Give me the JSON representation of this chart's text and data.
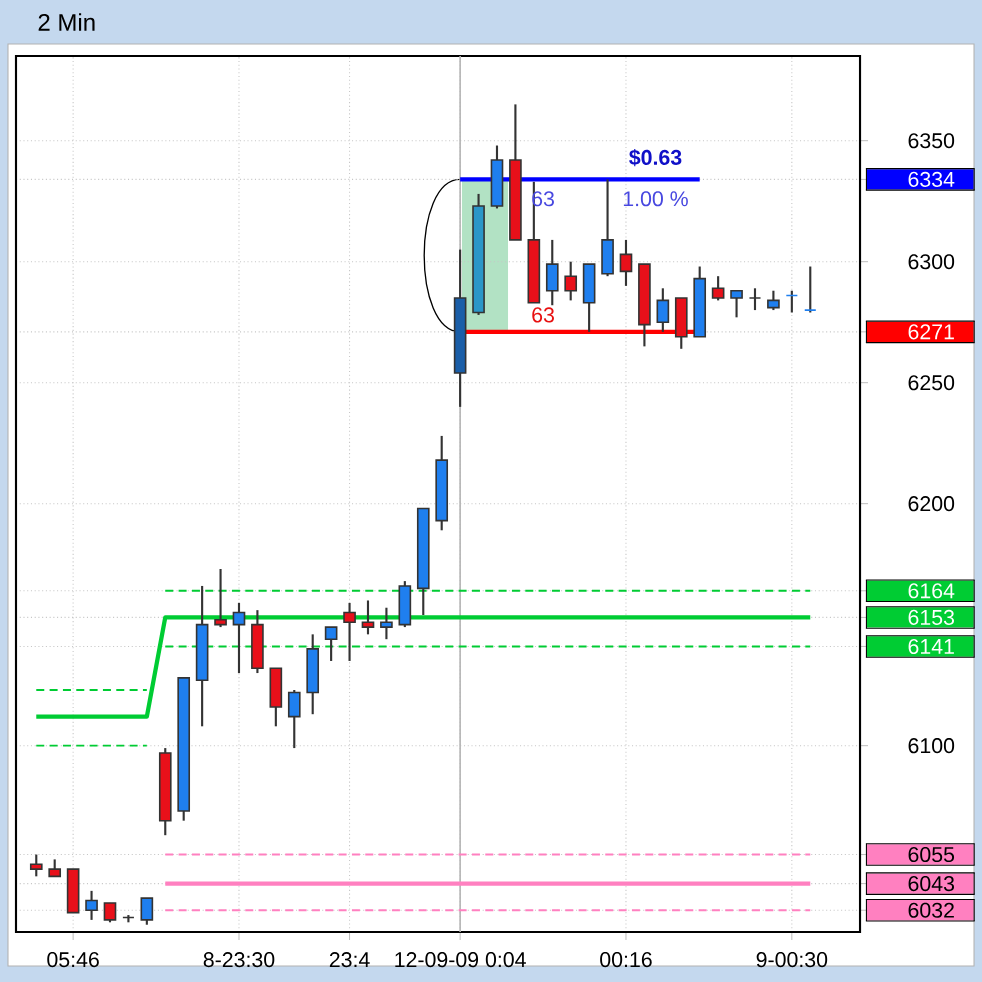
{
  "chart_data": {
    "type": "candlestick",
    "title": "2 Min",
    "categories": [
      null,
      null,
      "05:46",
      null,
      null,
      null,
      null,
      null,
      null,
      null,
      null,
      "8-23:30",
      null,
      null,
      null,
      null,
      null,
      "23:4",
      null,
      null,
      null,
      null,
      null,
      "12-09-09 0:04",
      null,
      null,
      null,
      null,
      null,
      null,
      null,
      null,
      "00:16",
      null,
      null,
      null,
      null,
      null,
      null,
      null,
      null,
      "9-00:30",
      null
    ],
    "ohlc": [
      [
        6051,
        6055,
        6046,
        6049
      ],
      [
        6049,
        6053,
        6046,
        6046
      ],
      [
        6049,
        6049,
        6031,
        6031
      ],
      [
        6032,
        6040,
        6028,
        6036
      ],
      [
        6035,
        6035,
        6027,
        6028
      ],
      [
        6029,
        6030,
        6027,
        6029
      ],
      [
        6028,
        6037,
        6026,
        6037
      ],
      [
        6097,
        6099,
        6063,
        6069
      ],
      [
        6073,
        6128,
        6069,
        6128
      ],
      [
        6127,
        6166,
        6108,
        6150
      ],
      [
        6152,
        6173,
        6149,
        6150
      ],
      [
        6150,
        6159,
        6130,
        6155
      ],
      [
        6150,
        6156,
        6130,
        6132
      ],
      [
        6132,
        6132,
        6108,
        6116
      ],
      [
        6112,
        6123,
        6099,
        6122
      ],
      [
        6122,
        6146,
        6113,
        6140
      ],
      [
        6144,
        6149,
        6135,
        6149
      ],
      [
        6155,
        6159,
        6135,
        6151
      ],
      [
        6151,
        6160,
        6146,
        6149
      ],
      [
        6149,
        6157,
        6144,
        6151
      ],
      [
        6150,
        6168,
        6149,
        6166
      ],
      [
        6165,
        6198,
        6154,
        6198
      ],
      [
        6193,
        6228,
        6189,
        6218
      ],
      [
        6254,
        6305,
        6240,
        6285
      ],
      [
        6279,
        6328,
        6278,
        6323
      ],
      [
        6323,
        6348,
        6322,
        6342
      ],
      [
        6342,
        6365,
        6309,
        6309
      ],
      [
        6309,
        6333,
        6283,
        6283
      ],
      [
        6288,
        6309,
        6282,
        6299
      ],
      [
        6294,
        6300,
        6284,
        6288
      ],
      [
        6283,
        6299,
        6271,
        6299
      ],
      [
        6295,
        6334,
        6294,
        6309
      ],
      [
        6303,
        6309,
        6290,
        6296
      ],
      [
        6299,
        6299,
        6265,
        6274
      ],
      [
        6275,
        6289,
        6271,
        6284
      ],
      [
        6285,
        6285,
        6264,
        6269
      ],
      [
        6269,
        6298,
        6269,
        6293
      ],
      [
        6289,
        6294,
        6284,
        6285
      ],
      [
        6285,
        6288,
        6277,
        6288
      ],
      [
        6285,
        6289,
        6280,
        6285
      ],
      [
        6281,
        6288,
        6280,
        6284
      ],
      [
        6286,
        6288,
        6279,
        6286
      ],
      [
        6280,
        6298,
        6279,
        6280
      ]
    ],
    "colors": [
      "#e8101a",
      "#e8101a",
      "#e8101a",
      "#1f7fef",
      "#e8101a",
      "#333333",
      "#1f7fef",
      "#e8101a",
      "#1f7fef",
      "#1f7fef",
      "#e8101a",
      "#1f7fef",
      "#e8101a",
      "#e8101a",
      "#1f7fef",
      "#1f7fef",
      "#1f7fef",
      "#e8101a",
      "#e8101a",
      "#1f7fef",
      "#1f7fef",
      "#1f7fef",
      "#1f7fef",
      "#1a5ea8",
      "#2a96c8",
      "#1f7fef",
      "#e8101a",
      "#e8101a",
      "#1f7fef",
      "#e8101a",
      "#1f7fef",
      "#1f7fef",
      "#e8101a",
      "#e8101a",
      "#1f7fef",
      "#e8101a",
      "#1f7fef",
      "#e8101a",
      "#1f7fef",
      "#333333",
      "#1f7fef",
      "#1f7fef",
      "#1f7fef"
    ],
    "ylim": [
      6023,
      6385
    ],
    "yticks": [
      6350,
      6334,
      6300,
      6271,
      6250,
      6200,
      6164,
      6153,
      6141,
      6100,
      6055,
      6043,
      6032
    ],
    "grid": true,
    "ref_lines": [
      {
        "axis": "x",
        "value": "12-09-09 0:04",
        "color": "#b4b4b4"
      }
    ],
    "series": [
      {
        "type": "line",
        "color": "#00cc33",
        "line_style": "solid",
        "values": [
          6112,
          6112,
          6112,
          6112,
          6112,
          6112,
          6112,
          6153,
          6153,
          6153,
          6153,
          6153,
          6153,
          6153,
          6153,
          6153,
          6153,
          6153,
          6153,
          6153,
          6153,
          6153,
          6153,
          6153,
          6153,
          6153,
          6153,
          6153,
          6153,
          6153,
          6153,
          6153,
          6153,
          6153,
          6153,
          6153,
          6153,
          6153,
          6153,
          6153,
          6153,
          6153,
          6153
        ]
      },
      {
        "type": "line",
        "color": "#00cc33",
        "line_style": "dashed",
        "values": [
          6123,
          6123,
          6123,
          6123,
          6123,
          6123,
          6123,
          null,
          null,
          null,
          null,
          null,
          null,
          null,
          null,
          null,
          null,
          null,
          null,
          null,
          null,
          null,
          null,
          null,
          null,
          null,
          null,
          null,
          null,
          null,
          null,
          null,
          null,
          null,
          null,
          null,
          null,
          null,
          null,
          null,
          null,
          null,
          null
        ]
      },
      {
        "type": "line",
        "color": "#00cc33",
        "line_style": "dashed",
        "values": [
          6100,
          6100,
          6100,
          6100,
          6100,
          6100,
          6100,
          null,
          null,
          null,
          null,
          null,
          null,
          null,
          null,
          null,
          null,
          null,
          null,
          null,
          null,
          null,
          null,
          null,
          null,
          null,
          null,
          null,
          null,
          null,
          null,
          null,
          null,
          null,
          null,
          null,
          null,
          null,
          null,
          null,
          null,
          null,
          null
        ]
      },
      {
        "type": "line",
        "color": "#00cc33",
        "line_style": "dashed",
        "values": [
          null,
          null,
          null,
          null,
          null,
          null,
          null,
          6164,
          6164,
          6164,
          6164,
          6164,
          6164,
          6164,
          6164,
          6164,
          6164,
          6164,
          6164,
          6164,
          6164,
          6164,
          6164,
          6164,
          6164,
          6164,
          6164,
          6164,
          6164,
          6164,
          6164,
          6164,
          6164,
          6164,
          6164,
          6164,
          6164,
          6164,
          6164,
          6164,
          6164,
          6164,
          6164
        ]
      },
      {
        "type": "line",
        "color": "#00cc33",
        "line_style": "dashed",
        "values": [
          null,
          null,
          null,
          null,
          null,
          null,
          null,
          6141,
          6141,
          6141,
          6141,
          6141,
          6141,
          6141,
          6141,
          6141,
          6141,
          6141,
          6141,
          6141,
          6141,
          6141,
          6141,
          6141,
          6141,
          6141,
          6141,
          6141,
          6141,
          6141,
          6141,
          6141,
          6141,
          6141,
          6141,
          6141,
          6141,
          6141,
          6141,
          6141,
          6141,
          6141,
          6141
        ]
      },
      {
        "type": "line",
        "color": "#ff80c0",
        "line_style": "solid",
        "values": [
          null,
          null,
          null,
          null,
          null,
          null,
          null,
          6043,
          6043,
          6043,
          6043,
          6043,
          6043,
          6043,
          6043,
          6043,
          6043,
          6043,
          6043,
          6043,
          6043,
          6043,
          6043,
          6043,
          6043,
          6043,
          6043,
          6043,
          6043,
          6043,
          6043,
          6043,
          6043,
          6043,
          6043,
          6043,
          6043,
          6043,
          6043,
          6043,
          6043,
          6043,
          6043
        ]
      },
      {
        "type": "line",
        "color": "#ff80c0",
        "line_style": "dashed",
        "values": [
          null,
          null,
          null,
          null,
          null,
          null,
          null,
          6055,
          6055,
          6055,
          6055,
          6055,
          6055,
          6055,
          6055,
          6055,
          6055,
          6055,
          6055,
          6055,
          6055,
          6055,
          6055,
          6055,
          6055,
          6055,
          6055,
          6055,
          6055,
          6055,
          6055,
          6055,
          6055,
          6055,
          6055,
          6055,
          6055,
          6055,
          6055,
          6055,
          6055,
          6055,
          6055
        ]
      },
      {
        "type": "line",
        "color": "#ff80c0",
        "line_style": "dashed",
        "values": [
          null,
          null,
          null,
          null,
          null,
          null,
          null,
          6032,
          6032,
          6032,
          6032,
          6032,
          6032,
          6032,
          6032,
          6032,
          6032,
          6032,
          6032,
          6032,
          6032,
          6032,
          6032,
          6032,
          6032,
          6032,
          6032,
          6032,
          6032,
          6032,
          6032,
          6032,
          6032,
          6032,
          6032,
          6032,
          6032,
          6032,
          6032,
          6032,
          6032,
          6032,
          6032
        ]
      },
      {
        "type": "line",
        "color": "#0000ff",
        "line_style": "solid",
        "values": [
          null,
          null,
          null,
          null,
          null,
          null,
          null,
          null,
          null,
          null,
          null,
          null,
          null,
          null,
          null,
          null,
          null,
          null,
          null,
          null,
          null,
          null,
          null,
          6334,
          6334,
          6334,
          6334,
          6334,
          6334,
          6334,
          6334,
          6334,
          6334,
          6334,
          6334,
          6334,
          6334,
          null,
          null,
          null,
          null,
          null,
          null
        ]
      },
      {
        "type": "line",
        "color": "#ff0000",
        "line_style": "solid",
        "values": [
          null,
          null,
          null,
          null,
          null,
          null,
          null,
          null,
          null,
          null,
          null,
          null,
          null,
          null,
          null,
          null,
          null,
          null,
          null,
          null,
          null,
          null,
          null,
          6271,
          6271,
          6271,
          6271,
          6271,
          6271,
          6271,
          6271,
          6271,
          6271,
          6271,
          6271,
          6271,
          6271,
          null,
          null,
          null,
          null,
          null,
          null
        ]
      }
    ],
    "annotations": [
      "$0.63",
      "63",
      "1.00 %",
      "63"
    ]
  }
}
